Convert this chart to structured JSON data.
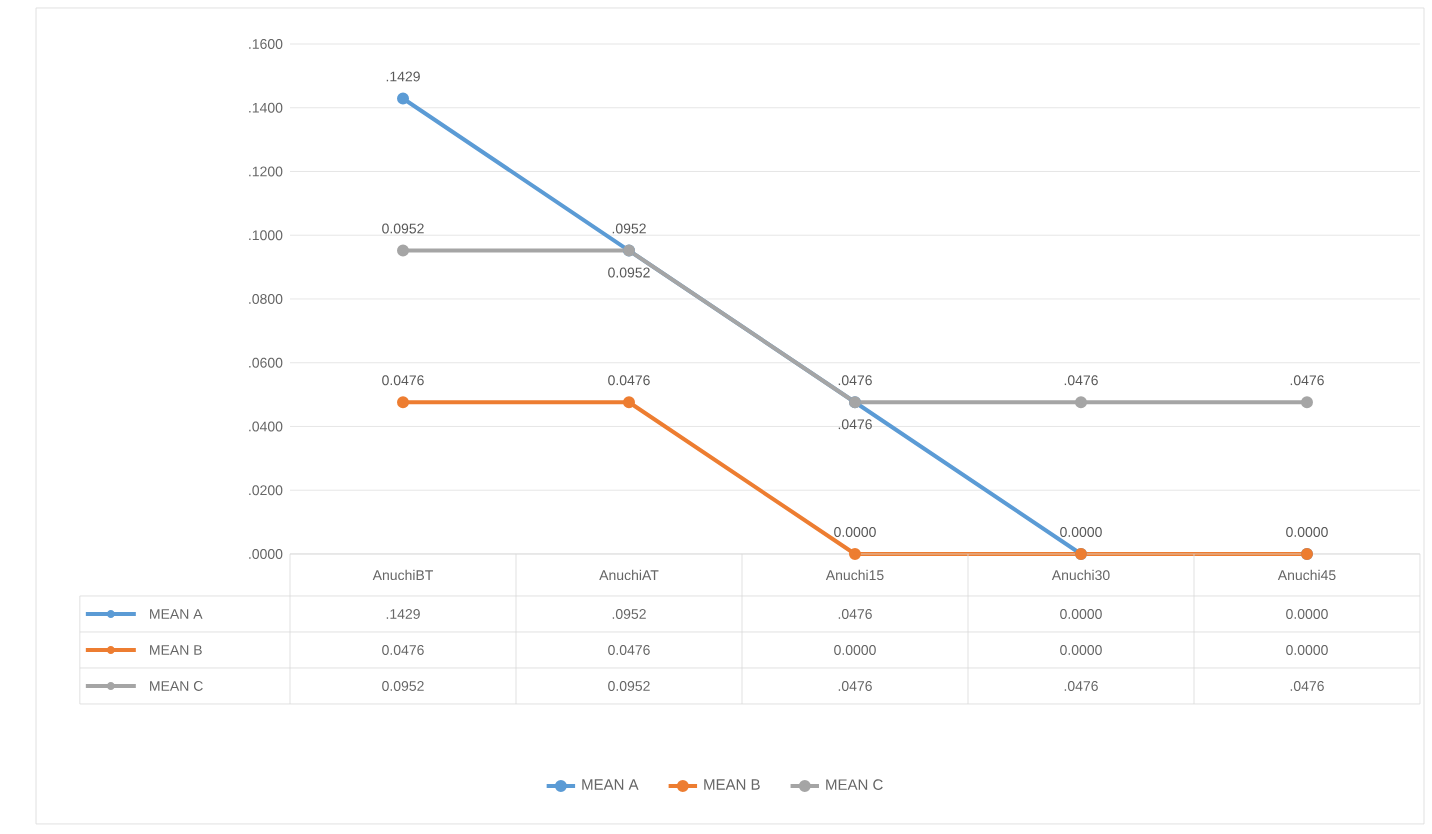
{
  "chart_data": {
    "type": "line",
    "categories": [
      "AnuchiBT",
      "AnuchiAT",
      "Anuchi15",
      "Anuchi30",
      "Anuchi45"
    ],
    "series": [
      {
        "name": "MEAN A",
        "color": "#5b9bd5",
        "values": [
          0.1429,
          0.0952,
          0.0476,
          0,
          0
        ],
        "value_labels": [
          ".1429",
          ".0952",
          ".0476",
          "0.0000",
          "0.0000"
        ]
      },
      {
        "name": "MEAN B",
        "color": "#ed7d31",
        "values": [
          0.0476,
          0.0476,
          0,
          0,
          0
        ],
        "value_labels": [
          "0.0476",
          "0.0476",
          "0.0000",
          "0.0000",
          "0.0000"
        ]
      },
      {
        "name": "MEAN C",
        "color": "#a5a5a5",
        "values": [
          0.0952,
          0.0952,
          0.0476,
          0.0476,
          0.0476
        ],
        "value_labels": [
          "0.0952",
          "0.0952",
          ".0476",
          ".0476",
          ".0476"
        ]
      }
    ],
    "ylim": [
      0,
      0.16
    ],
    "yticks": [
      {
        "value": 0,
        "label": ".0000"
      },
      {
        "value": 0.02,
        "label": ".0200"
      },
      {
        "value": 0.04,
        "label": ".0400"
      },
      {
        "value": 0.06,
        "label": ".0600"
      },
      {
        "value": 0.08,
        "label": ".0800"
      },
      {
        "value": 0.1,
        "label": ".1000"
      },
      {
        "value": 0.12,
        "label": ".1200"
      },
      {
        "value": 0.14,
        "label": ".1400"
      },
      {
        "value": 0.16,
        "label": ".1600"
      }
    ],
    "grid": "y",
    "legend": "bottom",
    "marker": "circle"
  }
}
